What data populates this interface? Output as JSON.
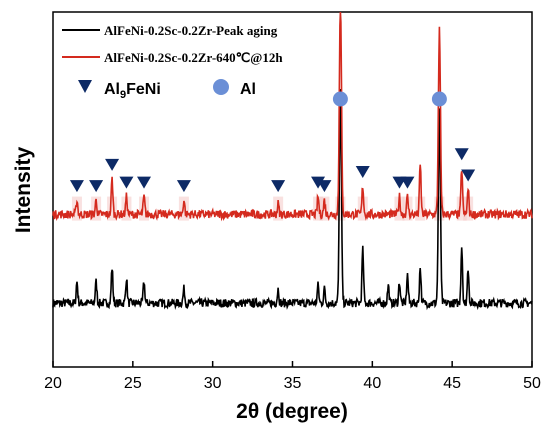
{
  "chart_data": {
    "type": "line",
    "xlabel": "2θ (degree)",
    "ylabel": "Intensity",
    "xlim": [
      20,
      50
    ],
    "xticks": [
      "20",
      "25",
      "30",
      "35",
      "40",
      "45",
      "50"
    ],
    "yticks": [],
    "grid": false,
    "legend_position": "top-left",
    "series": [
      {
        "name": "AlFeNi-0.2Sc-0.2Zr-Peak aging",
        "color": "#000000",
        "baseline": 0.18,
        "noise": 0.012,
        "peaks": [
          {
            "x": 21.5,
            "h": 0.06
          },
          {
            "x": 22.7,
            "h": 0.06
          },
          {
            "x": 23.7,
            "h": 0.1
          },
          {
            "x": 24.6,
            "h": 0.07
          },
          {
            "x": 25.7,
            "h": 0.06
          },
          {
            "x": 28.2,
            "h": 0.04
          },
          {
            "x": 34.1,
            "h": 0.04
          },
          {
            "x": 36.6,
            "h": 0.05
          },
          {
            "x": 37.0,
            "h": 0.04
          },
          {
            "x": 38.0,
            "h": 0.6
          },
          {
            "x": 39.4,
            "h": 0.15
          },
          {
            "x": 41.0,
            "h": 0.05
          },
          {
            "x": 41.7,
            "h": 0.06
          },
          {
            "x": 42.2,
            "h": 0.08
          },
          {
            "x": 43.0,
            "h": 0.1
          },
          {
            "x": 44.2,
            "h": 0.54
          },
          {
            "x": 45.6,
            "h": 0.16
          },
          {
            "x": 46.0,
            "h": 0.1
          }
        ]
      },
      {
        "name": "AlFeNi-0.2Sc-0.2Zr-640℃@12h",
        "color": "#d42a1e",
        "baseline": 0.43,
        "noise": 0.012,
        "peaks": [
          {
            "x": 21.5,
            "h": 0.04
          },
          {
            "x": 22.7,
            "h": 0.04
          },
          {
            "x": 23.7,
            "h": 0.1
          },
          {
            "x": 24.6,
            "h": 0.05
          },
          {
            "x": 25.7,
            "h": 0.05
          },
          {
            "x": 28.2,
            "h": 0.04
          },
          {
            "x": 34.1,
            "h": 0.03
          },
          {
            "x": 36.6,
            "h": 0.05
          },
          {
            "x": 37.0,
            "h": 0.04
          },
          {
            "x": 38.0,
            "h": 0.62
          },
          {
            "x": 39.4,
            "h": 0.08
          },
          {
            "x": 41.7,
            "h": 0.05
          },
          {
            "x": 42.2,
            "h": 0.05
          },
          {
            "x": 43.0,
            "h": 0.14
          },
          {
            "x": 44.2,
            "h": 0.52
          },
          {
            "x": 45.6,
            "h": 0.13
          },
          {
            "x": 46.0,
            "h": 0.07
          }
        ]
      }
    ],
    "phase_legend": [
      {
        "symbol": "triangle",
        "label": "Al",
        "sub": "9",
        "label_rest": "FeNi",
        "color": "#0d2a66"
      },
      {
        "symbol": "circle",
        "label": "Al",
        "sub": "",
        "label_rest": "",
        "color": "#6b8fd6"
      }
    ],
    "triangle_markers": [
      21.5,
      22.7,
      23.7,
      24.6,
      25.7,
      28.2,
      34.1,
      36.6,
      37.0,
      39.4,
      41.7,
      42.2,
      45.6,
      46.0
    ],
    "circle_markers": [
      38.0,
      44.2
    ]
  }
}
